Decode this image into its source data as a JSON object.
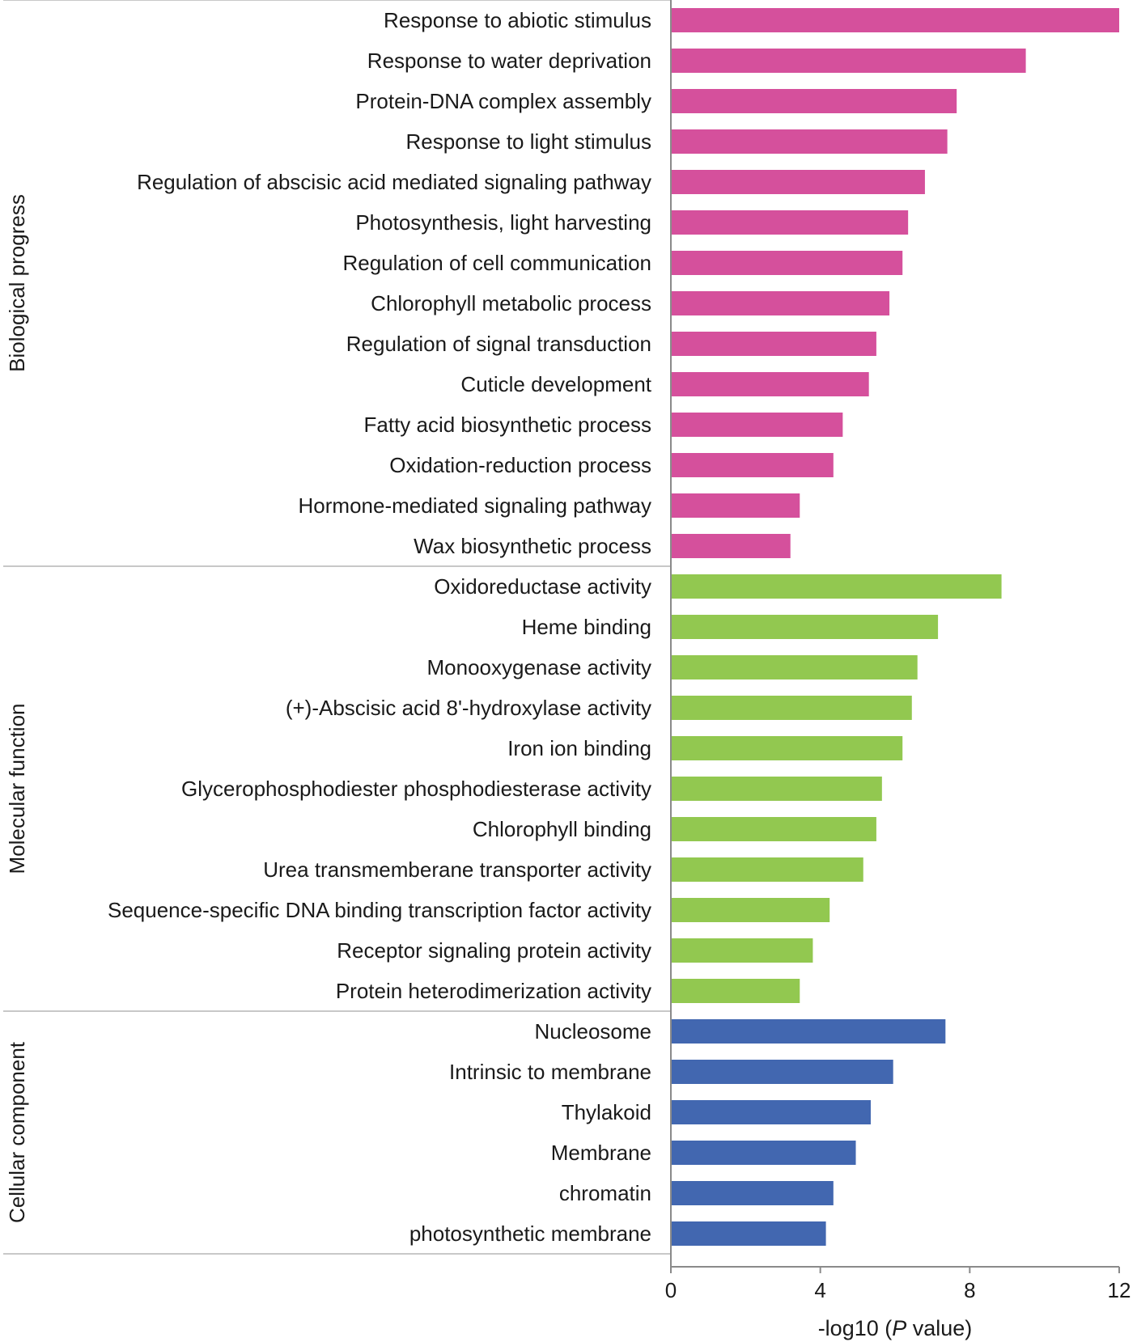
{
  "chart_data": {
    "type": "bar",
    "orientation": "horizontal",
    "xlabel": "-log10 (P value)",
    "xlabel_parts": {
      "prefix": "-log10 (",
      "italic": "P",
      "suffix": " value)"
    },
    "xlim": [
      0,
      12
    ],
    "xticks": [
      0,
      4,
      8,
      12
    ],
    "xtick_labels": [
      "0",
      "4",
      "8",
      "12"
    ],
    "grid": false,
    "groups": [
      {
        "name": "Biological progress",
        "color": "#d5509c",
        "categories": [
          "Response to abiotic stimulus",
          "Response to water deprivation",
          "Protein-DNA complex assembly",
          "Response to light stimulus",
          "Regulation of abscisic acid mediated signaling pathway",
          "Photosynthesis, light harvesting",
          "Regulation of cell communication",
          "Chlorophyll metabolic process",
          "Regulation of signal transduction",
          "Cuticle development",
          "Fatty acid biosynthetic process",
          "Oxidation-reduction process",
          "Hormone-mediated signaling pathway",
          "Wax biosynthetic process"
        ],
        "values": [
          12.0,
          9.5,
          7.65,
          7.4,
          6.8,
          6.35,
          6.2,
          5.85,
          5.5,
          5.3,
          4.6,
          4.35,
          3.45,
          3.2
        ]
      },
      {
        "name": "Molecular function",
        "color": "#92c850",
        "categories": [
          "Oxidoreductase activity",
          "Heme binding",
          "Monooxygenase activity",
          "(+)-Abscisic acid 8'-hydroxylase activity",
          "Iron ion binding",
          "Glycerophosphodiester phosphodiesterase activity",
          "Chlorophyll binding",
          "Urea transmemberane transporter activity",
          "Sequence-specific DNA binding transcription factor activity",
          "Receptor signaling protein activity",
          "Protein heterodimerization activity"
        ],
        "values": [
          8.85,
          7.15,
          6.6,
          6.45,
          6.2,
          5.65,
          5.5,
          5.15,
          4.25,
          3.8,
          3.45
        ]
      },
      {
        "name": "Cellular component",
        "color": "#4267b0",
        "categories": [
          "Nucleosome",
          "Intrinsic to membrane",
          "Thylakoid",
          "Membrane",
          "chromatin",
          "photosynthetic membrane"
        ],
        "values": [
          7.35,
          5.95,
          5.35,
          4.95,
          4.35,
          4.15
        ]
      }
    ]
  }
}
